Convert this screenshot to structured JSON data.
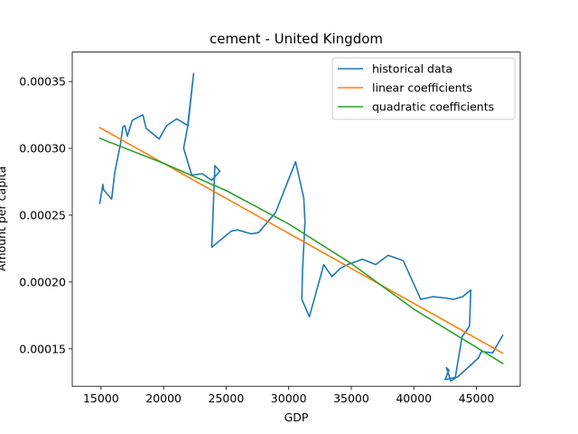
{
  "chart_data": {
    "type": "line",
    "title": "cement - United Kingdom",
    "xlabel": "GDP",
    "ylabel": "Amount per capita",
    "xlim": [
      12700,
      48500
    ],
    "ylim": [
      0.000122,
      0.000372
    ],
    "xticks": [
      15000,
      20000,
      25000,
      30000,
      35000,
      40000,
      45000
    ],
    "yticks": [
      0.00015,
      0.0002,
      0.00025,
      0.0003,
      0.00035
    ],
    "ytick_decimals": 5,
    "grid": false,
    "legend_position": "top-right",
    "series": [
      {
        "name": "historical data",
        "color": "#1f77b4",
        "points": [
          [
            14900,
            0.000259
          ],
          [
            15150,
            0.000273
          ],
          [
            15200,
            0.000269
          ],
          [
            15850,
            0.000262
          ],
          [
            16100,
            0.000282
          ],
          [
            16550,
            0.000303
          ],
          [
            16750,
            0.000316
          ],
          [
            16900,
            0.000317
          ],
          [
            17100,
            0.000309
          ],
          [
            17500,
            0.000321
          ],
          [
            18350,
            0.000325
          ],
          [
            18600,
            0.000315
          ],
          [
            19650,
            0.000307
          ],
          [
            20250,
            0.000317
          ],
          [
            21050,
            0.000322
          ],
          [
            21950,
            0.000317
          ],
          [
            22400,
            0.000356
          ],
          [
            21900,
            0.000315
          ],
          [
            21600,
            0.0003
          ],
          [
            22250,
            0.00028
          ],
          [
            23100,
            0.000281
          ],
          [
            23850,
            0.000276
          ],
          [
            24500,
            0.000283
          ],
          [
            24100,
            0.000287
          ],
          [
            23850,
            0.000226
          ],
          [
            25400,
            0.000238
          ],
          [
            25900,
            0.000239
          ],
          [
            27000,
            0.000236
          ],
          [
            27600,
            0.000237
          ],
          [
            28950,
            0.000252
          ],
          [
            30550,
            0.00029
          ],
          [
            31200,
            0.000263
          ],
          [
            31300,
            0.000245
          ],
          [
            31100,
            0.000208
          ],
          [
            31050,
            0.000187
          ],
          [
            31650,
            0.000174
          ],
          [
            32800,
            0.000213
          ],
          [
            33450,
            0.000204
          ],
          [
            34100,
            0.00021
          ],
          [
            34700,
            0.000213
          ],
          [
            35900,
            0.000217
          ],
          [
            36950,
            0.000213
          ],
          [
            37950,
            0.00022
          ],
          [
            39150,
            0.000216
          ],
          [
            40550,
            0.000187
          ],
          [
            41550,
            0.000189
          ],
          [
            42550,
            0.000188
          ],
          [
            43150,
            0.000187
          ],
          [
            43900,
            0.000189
          ],
          [
            44550,
            0.000194
          ],
          [
            44450,
            0.000167
          ],
          [
            43850,
            0.000159
          ],
          [
            43300,
            0.000128
          ],
          [
            42950,
            0.000126
          ],
          [
            42600,
            0.000136
          ],
          [
            42800,
            0.000134
          ],
          [
            42500,
            0.000127
          ],
          [
            43500,
            0.000129
          ],
          [
            44450,
            0.000137
          ],
          [
            45150,
            0.000143
          ],
          [
            45400,
            0.000148
          ],
          [
            46300,
            0.000147
          ],
          [
            47100,
            0.00016
          ]
        ]
      },
      {
        "name": "linear coefficients",
        "color": "#ff7f0e",
        "points": [
          [
            14900,
            0.0003155
          ],
          [
            47100,
            0.0001468
          ]
        ]
      },
      {
        "name": "quadratic coefficients",
        "color": "#2ca02c",
        "points": [
          [
            14900,
            0.0003075
          ],
          [
            20000,
            0.0002888
          ],
          [
            25000,
            0.0002684
          ],
          [
            30000,
            0.0002434
          ],
          [
            35000,
            0.0002138
          ],
          [
            40000,
            0.0001797
          ],
          [
            47100,
            0.0001391
          ]
        ]
      }
    ]
  }
}
